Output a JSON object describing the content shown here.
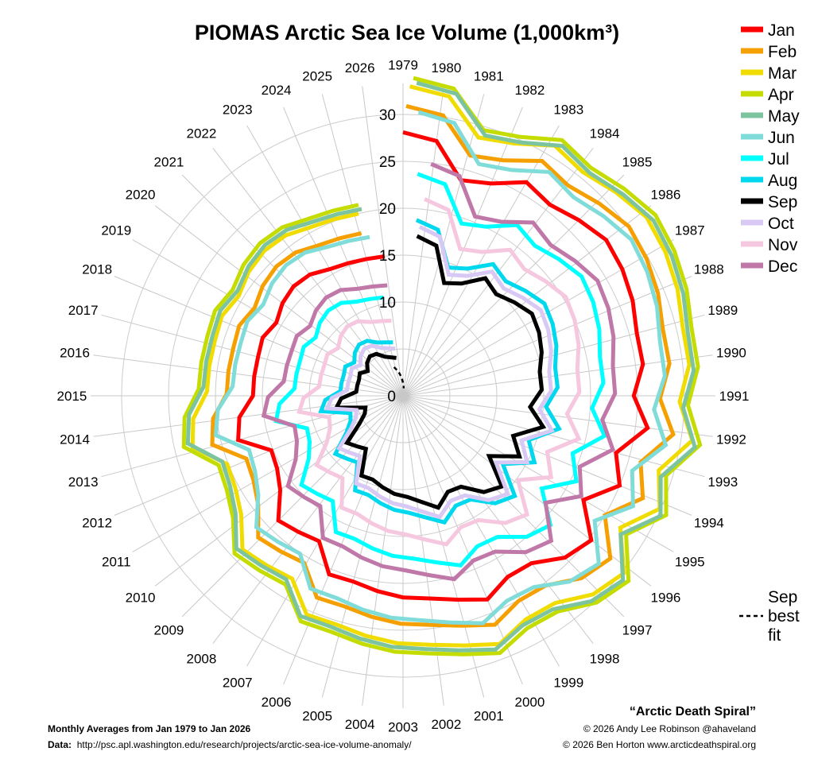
{
  "chart_data": {
    "type": "polar-line",
    "title": "PIOMAS Arctic Sea Ice Volume (1,000km³)",
    "angular_axis": {
      "labels": [
        "1979",
        "1980",
        "1981",
        "1982",
        "1983",
        "1984",
        "1985",
        "1986",
        "1987",
        "1988",
        "1989",
        "1990",
        "1991",
        "1992",
        "1993",
        "1994",
        "1995",
        "1996",
        "1997",
        "1998",
        "1999",
        "2000",
        "2001",
        "2002",
        "2003",
        "2004",
        "2005",
        "2006",
        "2007",
        "2008",
        "2009",
        "2010",
        "2011",
        "2012",
        "2013",
        "2014",
        "2015",
        "2016",
        "2017",
        "2018",
        "2019",
        "2020",
        "2021",
        "2022",
        "2023",
        "2024",
        "2025",
        "2026"
      ]
    },
    "radial_axis": {
      "range": [
        0,
        33
      ],
      "tick_labels": [
        "0",
        "10",
        "15",
        "20",
        "25",
        "30"
      ],
      "tick_values": [
        0,
        10,
        15,
        20,
        25,
        30
      ],
      "grid_circles": [
        5,
        10,
        15,
        20,
        25,
        30
      ]
    },
    "grid": true,
    "legend_position": "right",
    "x_start_year": 1979,
    "series": [
      {
        "name": "Jan",
        "color": "#ff0000",
        "values": [
          28.1,
          27.4,
          23.8,
          24.5,
          26.3,
          25.7,
          26.5,
          27.3,
          27.0,
          26.5,
          25.8,
          25.8,
          24.6,
          26.3,
          23.5,
          25.0,
          22.2,
          25.3,
          24.4,
          22.5,
          22.3,
          23.5,
          22.5,
          21.8,
          21.5,
          21.0,
          20.5,
          20.6,
          17.9,
          18.3,
          18.8,
          16.5,
          15.5,
          15.2,
          18.2,
          17.6,
          16.0,
          16.0,
          16.0,
          16.2,
          15.6,
          16.2,
          16.5,
          16.3,
          15.6,
          15.3,
          15.1,
          15.0
        ]
      },
      {
        "name": "Feb",
        "color": "#f5a000",
        "values": [
          30.9,
          30.2,
          26.6,
          27.3,
          29.1,
          28.5,
          29.3,
          30.1,
          29.8,
          29.3,
          28.6,
          28.6,
          27.4,
          29.1,
          26.3,
          27.8,
          25.0,
          28.1,
          27.2,
          25.3,
          25.1,
          26.3,
          25.3,
          24.6,
          24.3,
          23.8,
          23.3,
          23.4,
          20.7,
          21.1,
          21.6,
          19.3,
          18.3,
          18.0,
          21.0,
          20.4,
          18.8,
          18.8,
          18.8,
          19.0,
          18.4,
          19.0,
          19.3,
          19.1,
          18.4,
          18.1,
          17.9
        ]
      },
      {
        "name": "Mar",
        "color": "#f0dc00",
        "values": [
          33.0,
          32.3,
          28.7,
          29.4,
          31.2,
          30.6,
          31.4,
          32.2,
          31.9,
          31.4,
          30.7,
          30.7,
          29.5,
          31.2,
          28.4,
          29.9,
          27.1,
          30.2,
          29.3,
          27.4,
          27.2,
          28.4,
          27.4,
          26.7,
          26.4,
          25.9,
          25.4,
          25.5,
          22.8,
          23.2,
          23.7,
          21.4,
          20.4,
          20.1,
          23.1,
          22.5,
          20.9,
          20.9,
          20.9,
          21.1,
          20.5,
          21.1,
          21.4,
          21.2,
          20.5,
          20.2,
          20.0
        ]
      },
      {
        "name": "Apr",
        "color": "#c4dc00",
        "values": [
          33.9,
          33.2,
          29.6,
          30.3,
          32.1,
          31.5,
          32.3,
          33.1,
          32.8,
          32.3,
          31.6,
          31.6,
          30.4,
          32.1,
          29.3,
          30.8,
          28.0,
          31.1,
          30.2,
          28.3,
          28.1,
          29.3,
          28.3,
          27.6,
          27.3,
          26.8,
          26.3,
          26.4,
          23.7,
          24.1,
          24.6,
          22.3,
          21.3,
          21.0,
          24.0,
          23.4,
          21.8,
          21.8,
          21.8,
          22.0,
          21.4,
          22.0,
          22.3,
          22.1,
          21.4,
          21.1,
          20.9
        ]
      },
      {
        "name": "May",
        "color": "#7cc4a0",
        "values": [
          33.4,
          32.7,
          29.1,
          29.8,
          31.6,
          31.0,
          31.8,
          32.6,
          32.3,
          31.8,
          31.1,
          31.1,
          29.9,
          31.6,
          28.8,
          30.3,
          27.5,
          30.6,
          29.7,
          27.8,
          27.6,
          28.8,
          27.8,
          27.1,
          26.8,
          26.3,
          25.8,
          25.9,
          23.2,
          23.6,
          24.1,
          21.8,
          20.8,
          20.5,
          23.5,
          22.9,
          21.3,
          21.3,
          21.3,
          21.5,
          20.9,
          21.5,
          21.8,
          21.6,
          20.9,
          20.6,
          20.4
        ]
      },
      {
        "name": "Jun",
        "color": "#80dcd8",
        "values": [
          30.3,
          29.6,
          26.0,
          26.7,
          28.5,
          27.9,
          28.7,
          29.5,
          29.2,
          28.7,
          28.0,
          28.0,
          26.8,
          28.5,
          25.7,
          27.2,
          24.4,
          27.5,
          26.6,
          24.7,
          24.5,
          25.7,
          24.7,
          24.0,
          23.7,
          23.2,
          22.7,
          22.8,
          20.1,
          20.5,
          21.0,
          18.7,
          17.7,
          17.4,
          20.4,
          19.8,
          18.2,
          18.2,
          18.2,
          18.4,
          17.8,
          18.4,
          18.7,
          18.5,
          17.8,
          17.5,
          17.3
        ]
      },
      {
        "name": "Jul",
        "color": "#00ffff",
        "values": [
          23.7,
          23.0,
          19.4,
          20.1,
          21.9,
          21.3,
          22.1,
          22.9,
          22.6,
          22.1,
          21.4,
          21.4,
          20.2,
          21.9,
          19.1,
          20.6,
          17.8,
          20.9,
          20.0,
          18.1,
          17.9,
          19.1,
          18.1,
          17.4,
          17.1,
          16.6,
          16.1,
          16.2,
          13.5,
          13.9,
          14.4,
          12.1,
          11.1,
          10.8,
          13.8,
          13.2,
          11.6,
          11.6,
          11.6,
          11.8,
          11.2,
          11.8,
          12.1,
          11.9,
          11.2,
          10.9,
          10.7
        ]
      },
      {
        "name": "Aug",
        "color": "#00d8ee",
        "values": [
          18.8,
          18.1,
          14.5,
          15.2,
          17.0,
          16.4,
          17.2,
          18.0,
          17.7,
          17.2,
          16.5,
          16.5,
          15.3,
          17.0,
          14.2,
          15.7,
          12.9,
          16.0,
          15.1,
          13.2,
          13.0,
          14.2,
          13.2,
          12.5,
          12.2,
          11.7,
          11.2,
          11.3,
          8.6,
          9.0,
          9.5,
          7.2,
          6.2,
          5.9,
          8.9,
          8.3,
          6.7,
          6.7,
          6.7,
          6.9,
          6.3,
          6.9,
          7.2,
          7.0,
          6.3,
          6.0,
          5.8
        ]
      },
      {
        "name": "Sep",
        "color": "#000000",
        "values": [
          17.1,
          16.4,
          12.8,
          13.5,
          15.3,
          14.7,
          15.5,
          16.3,
          16.0,
          15.5,
          14.8,
          14.8,
          13.6,
          15.3,
          12.5,
          14.0,
          11.2,
          14.3,
          13.4,
          11.5,
          11.3,
          12.5,
          11.5,
          10.8,
          10.5,
          10.0,
          9.5,
          9.6,
          6.9,
          7.3,
          7.8,
          5.5,
          4.5,
          4.2,
          7.2,
          6.6,
          5.0,
          5.0,
          5.0,
          5.2,
          4.6,
          5.2,
          5.5,
          5.3,
          4.6,
          4.3,
          4.1
        ]
      },
      {
        "name": "Oct",
        "color": "#d8c8f4",
        "values": [
          18.1,
          17.4,
          13.8,
          14.5,
          16.3,
          15.7,
          16.5,
          17.3,
          17.0,
          16.5,
          15.8,
          15.8,
          14.6,
          16.3,
          13.5,
          15.0,
          12.2,
          15.3,
          14.4,
          12.5,
          12.3,
          13.5,
          12.5,
          11.8,
          11.5,
          11.0,
          10.5,
          10.6,
          7.9,
          8.3,
          8.8,
          6.5,
          5.5,
          5.2,
          8.2,
          7.6,
          6.0,
          6.0,
          6.0,
          6.2,
          5.6,
          6.2,
          6.5,
          6.3,
          5.6,
          5.3,
          5.1
        ]
      },
      {
        "name": "Nov",
        "color": "#f6c8e0",
        "values": [
          21.1,
          20.4,
          16.8,
          17.5,
          19.3,
          18.7,
          19.5,
          20.3,
          20.0,
          19.5,
          18.8,
          18.8,
          17.6,
          19.3,
          16.5,
          18.0,
          15.2,
          18.3,
          17.4,
          15.5,
          15.3,
          16.5,
          15.5,
          14.8,
          14.5,
          14.0,
          13.5,
          13.6,
          10.9,
          11.3,
          11.8,
          9.5,
          8.5,
          8.2,
          11.2,
          10.6,
          9.0,
          9.0,
          9.0,
          9.2,
          8.6,
          9.2,
          9.5,
          9.3,
          8.6,
          8.3,
          8.1
        ]
      },
      {
        "name": "Dec",
        "color": "#c078a8",
        "values": [
          24.9,
          24.2,
          20.6,
          21.3,
          23.1,
          22.5,
          23.3,
          24.1,
          23.8,
          23.3,
          22.6,
          22.6,
          21.4,
          23.1,
          20.3,
          21.8,
          19.0,
          22.1,
          21.2,
          19.3,
          19.1,
          20.3,
          19.3,
          18.6,
          18.3,
          17.8,
          17.3,
          17.4,
          14.7,
          15.1,
          15.6,
          13.3,
          12.3,
          12.0,
          15.0,
          14.4,
          12.8,
          12.8,
          12.8,
          13.0,
          12.4,
          13.0,
          13.3,
          13.1,
          12.4,
          12.1,
          11.9
        ]
      }
    ],
    "best_fit": {
      "name": "Sep best fit",
      "style": "dashed",
      "color": "#000000",
      "years": [
        2024,
        2025,
        2026,
        2027
      ],
      "values": [
        3.2,
        2.5,
        1.7,
        0.8
      ]
    }
  },
  "legend": {
    "best_fit_lines": [
      "Sep",
      "best",
      "fit"
    ]
  },
  "footer": {
    "subtitle": "Monthly Averages from Jan 1979 to Jan 2026",
    "data_label": "Data:",
    "data_url": "http://psc.apl.washington.edu/research/projects/arctic-sea-ice-volume-anomaly/",
    "spiral_name": "“Arctic Death Spiral”",
    "credit1": "© 2026 Andy Lee Robinson @ahaveland",
    "credit2": "© 2026 Ben Horton www.arcticdeathspiral.org"
  }
}
